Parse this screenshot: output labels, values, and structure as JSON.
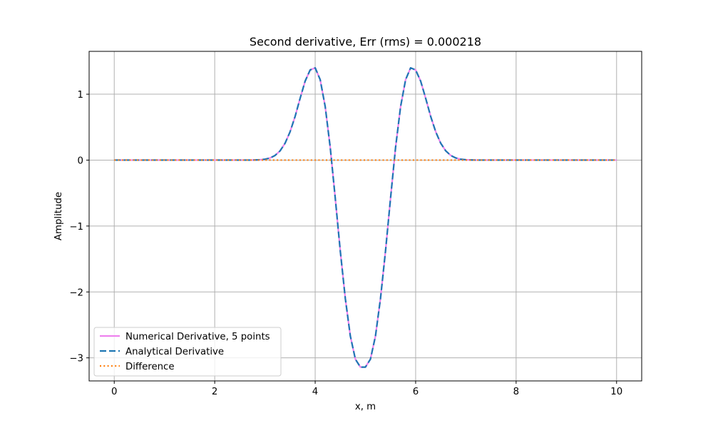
{
  "chart_data": {
    "type": "line",
    "title": "Second derivative, Err (rms) = 0.000218",
    "xlabel": "x, m",
    "ylabel": "Amplitude",
    "xlim": [
      -0.5,
      10.5
    ],
    "ylim": [
      -3.35,
      1.65
    ],
    "xticks": [
      0,
      2,
      4,
      6,
      8,
      10
    ],
    "xtick_labels": [
      "0",
      "2",
      "4",
      "6",
      "8",
      "10"
    ],
    "yticks": [
      -3,
      -2,
      -1,
      0,
      1
    ],
    "ytick_labels": [
      "−3",
      "−2",
      "−1",
      "0",
      "1"
    ],
    "grid": true,
    "legend_position": "lower-left",
    "x": [
      0.0,
      0.1,
      0.2,
      0.3,
      0.4,
      0.5,
      0.6,
      0.7,
      0.8,
      0.9,
      1.0,
      1.1,
      1.2,
      1.3,
      1.4,
      1.5,
      1.6,
      1.7,
      1.8,
      1.9,
      2.0,
      2.1,
      2.2,
      2.3,
      2.4,
      2.5,
      2.6,
      2.7,
      2.8,
      2.9,
      3.0,
      3.1,
      3.2,
      3.3,
      3.4,
      3.5,
      3.6,
      3.7,
      3.8,
      3.9,
      4.0,
      4.1,
      4.2,
      4.3,
      4.4,
      4.5,
      4.6,
      4.7,
      4.8,
      4.9,
      5.0,
      5.1,
      5.2,
      5.3,
      5.4,
      5.5,
      5.6,
      5.7,
      5.8,
      5.9,
      6.0,
      6.1,
      6.2,
      6.3,
      6.4,
      6.5,
      6.6,
      6.7,
      6.8,
      6.9,
      7.0,
      7.1,
      7.2,
      7.3,
      7.4,
      7.5,
      7.6,
      7.7,
      7.8,
      7.9,
      8.0,
      8.1,
      8.2,
      8.3,
      8.4,
      8.5,
      8.6,
      8.7,
      8.8,
      8.9,
      9.0,
      9.1,
      9.2,
      9.3,
      9.4,
      9.5,
      9.6,
      9.7,
      9.8,
      9.9,
      10.0
    ],
    "series": [
      {
        "name": "Numerical Derivative, 5 points",
        "color": "#ee82ee",
        "style": "solid",
        "values": [
          0.0,
          0.0,
          0.0,
          0.0,
          0.0,
          0.0,
          0.0,
          0.0,
          0.0,
          0.0,
          0.0,
          0.0,
          0.0,
          0.0,
          0.0,
          0.0,
          0.0,
          0.0,
          0.0,
          0.0,
          0.0,
          0.0,
          0.0,
          0.0,
          0.0,
          0.0,
          0.0,
          0.0,
          0.002,
          0.005,
          0.014,
          0.032,
          0.07,
          0.139,
          0.255,
          0.429,
          0.661,
          0.937,
          1.198,
          1.368,
          1.4,
          1.22,
          0.81,
          0.19,
          -0.58,
          -1.38,
          -2.1,
          -2.67,
          -3.02,
          -3.14,
          -3.14,
          -3.02,
          -2.67,
          -2.1,
          -1.38,
          -0.58,
          0.19,
          0.81,
          1.22,
          1.4,
          1.368,
          1.198,
          0.937,
          0.661,
          0.429,
          0.255,
          0.139,
          0.07,
          0.032,
          0.014,
          0.005,
          0.002,
          0.0,
          0.0,
          0.0,
          0.0,
          0.0,
          0.0,
          0.0,
          0.0,
          0.0,
          0.0,
          0.0,
          0.0,
          0.0,
          0.0,
          0.0,
          0.0,
          0.0,
          0.0,
          0.0,
          0.0,
          0.0,
          0.0,
          0.0,
          0.0,
          0.0,
          0.0,
          0.0,
          0.0,
          0.0
        ]
      },
      {
        "name": "Analytical Derivative",
        "color": "#1f77b4",
        "style": "dashed",
        "values": [
          0.0,
          0.0,
          0.0,
          0.0,
          0.0,
          0.0,
          0.0,
          0.0,
          0.0,
          0.0,
          0.0,
          0.0,
          0.0,
          0.0,
          0.0,
          0.0,
          0.0,
          0.0,
          0.0,
          0.0,
          0.0,
          0.0,
          0.0,
          0.0,
          0.0,
          0.0,
          0.0,
          0.0,
          0.002,
          0.005,
          0.014,
          0.032,
          0.07,
          0.139,
          0.255,
          0.429,
          0.661,
          0.937,
          1.198,
          1.368,
          1.4,
          1.22,
          0.81,
          0.19,
          -0.58,
          -1.38,
          -2.1,
          -2.67,
          -3.02,
          -3.14,
          -3.14,
          -3.02,
          -2.67,
          -2.1,
          -1.38,
          -0.58,
          0.19,
          0.81,
          1.22,
          1.4,
          1.368,
          1.198,
          0.937,
          0.661,
          0.429,
          0.255,
          0.139,
          0.07,
          0.032,
          0.014,
          0.005,
          0.002,
          0.0,
          0.0,
          0.0,
          0.0,
          0.0,
          0.0,
          0.0,
          0.0,
          0.0,
          0.0,
          0.0,
          0.0,
          0.0,
          0.0,
          0.0,
          0.0,
          0.0,
          0.0,
          0.0,
          0.0,
          0.0,
          0.0,
          0.0,
          0.0,
          0.0,
          0.0,
          0.0,
          0.0,
          0.0
        ]
      },
      {
        "name": "Difference",
        "color": "#ff7f0e",
        "style": "dotted",
        "values": [
          0.0,
          0.0,
          0.0,
          0.0,
          0.0,
          0.0,
          0.0,
          0.0,
          0.0,
          0.0,
          0.0,
          0.0,
          0.0,
          0.0,
          0.0,
          0.0,
          0.0,
          0.0,
          0.0,
          0.0,
          0.0,
          0.0,
          0.0,
          0.0,
          0.0,
          0.0,
          0.0,
          0.0,
          0.0,
          0.0,
          0.0,
          0.0,
          0.0,
          0.0,
          0.0,
          0.0,
          0.0,
          0.0,
          0.0,
          0.0,
          0.0,
          0.0,
          0.0,
          0.0,
          0.0,
          0.0,
          0.0,
          0.0,
          0.0,
          0.0,
          0.0,
          0.0,
          0.0,
          0.0,
          0.0,
          0.0,
          0.0,
          0.0,
          0.0,
          0.0,
          0.0,
          0.0,
          0.0,
          0.0,
          0.0,
          0.0,
          0.0,
          0.0,
          0.0,
          0.0,
          0.0,
          0.0,
          0.0,
          0.0,
          0.0,
          0.0,
          0.0,
          0.0,
          0.0,
          0.0,
          0.0,
          0.0,
          0.0,
          0.0,
          0.0,
          0.0,
          0.0,
          0.0,
          0.0,
          0.0,
          0.0,
          0.0,
          0.0,
          0.0,
          0.0,
          0.0,
          0.0,
          0.0,
          0.0,
          0.0,
          0.0
        ]
      }
    ]
  }
}
